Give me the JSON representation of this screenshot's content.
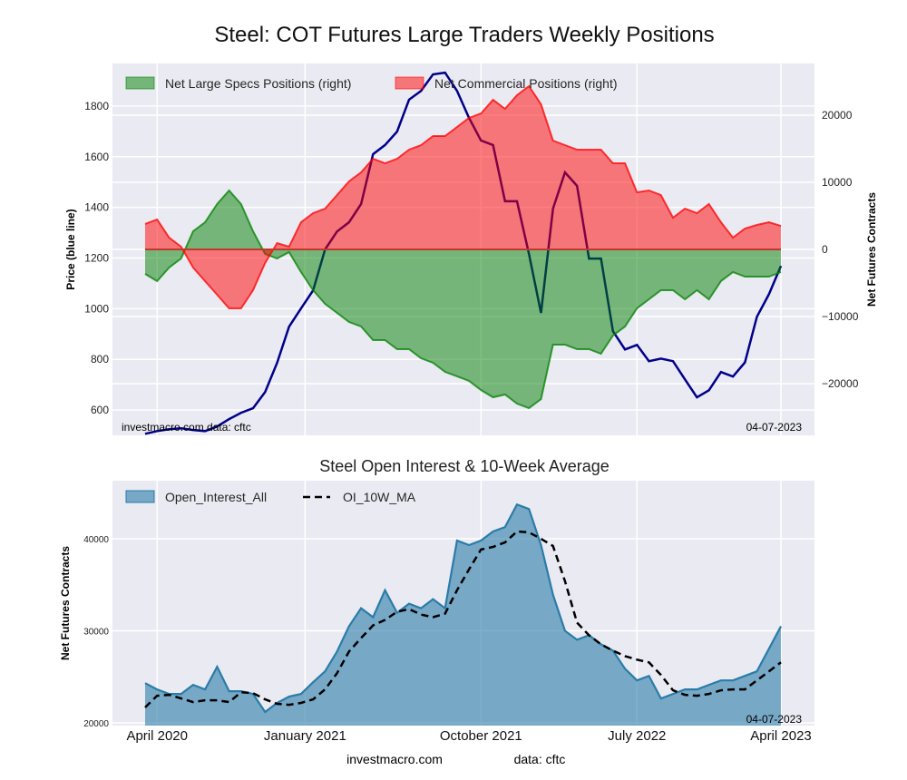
{
  "title": "Steel: COT Futures Large Traders Weekly Positions",
  "colors": {
    "bg": "#eaeaf2",
    "grid": "#ffffff",
    "price": "#00008b",
    "specs": "#008000",
    "commercial": "#ff0000",
    "oi_fill": "#2a7ca8",
    "ma": "#000000"
  },
  "chart_data": [
    {
      "type": "area",
      "title": "Steel: COT Futures Large Traders Weekly Positions",
      "xlabel": "",
      "ylabel_left": "Price (blue line)",
      "ylabel_right": "Net Futures Contracts",
      "x_unit": "week index (every 3 weeks)",
      "x": [
        0,
        3,
        6,
        9,
        12,
        15,
        18,
        21,
        24,
        27,
        30,
        33,
        36,
        39,
        42,
        45,
        48,
        51,
        54,
        57,
        60,
        63,
        66,
        69,
        72,
        75,
        78,
        81,
        84,
        87,
        90,
        93,
        96,
        99,
        102,
        105,
        108,
        111,
        114,
        117,
        120,
        123,
        126,
        129,
        132,
        135,
        138,
        141,
        144,
        147,
        150,
        153,
        156,
        159
      ],
      "ylim_left": [
        500,
        1968
      ],
      "ylim_right": [
        -27700,
        27700
      ],
      "yticks_left": [
        600,
        800,
        1000,
        1200,
        1400,
        1600,
        1800
      ],
      "yticks_right": [
        -20000,
        -10000,
        0,
        10000,
        20000
      ],
      "yticks_right_labels": [
        "−20000",
        "−10000",
        "0",
        "10000",
        "20000"
      ],
      "legend": [
        "Net Large Specs Positions (right)",
        "Net Commercial Positions (right)"
      ],
      "legend_position": "top-left",
      "annotation_left": "investmacro.com    data: cftc",
      "annotation_right": "04-07-2023",
      "series": [
        {
          "name": "Price",
          "axis": "left",
          "values": [
            506,
            517,
            524,
            528,
            521,
            517,
            535,
            564,
            589,
            607,
            671,
            786,
            929,
            1001,
            1072,
            1234,
            1305,
            1341,
            1413,
            1610,
            1646,
            1699,
            1825,
            1860,
            1925,
            1932,
            1860,
            1753,
            1664,
            1646,
            1424,
            1424,
            1216,
            983,
            1395,
            1538,
            1485,
            1198,
            1198,
            911,
            839,
            857,
            793,
            803,
            793,
            721,
            650,
            678,
            750,
            732,
            788,
            968,
            1057,
            1169
          ]
        },
        {
          "name": "Net Large Specs Positions (right)",
          "axis": "right",
          "values": [
            -3650,
            -4730,
            -2700,
            -1350,
            2700,
            4050,
            6760,
            8780,
            6760,
            2700,
            -680,
            -1350,
            -410,
            -3380,
            -6080,
            -8110,
            -9460,
            -10810,
            -11480,
            -13510,
            -13510,
            -14860,
            -14860,
            -16210,
            -16890,
            -18240,
            -18910,
            -19590,
            -20940,
            -22020,
            -21620,
            -22970,
            -23640,
            -22290,
            -14190,
            -14190,
            -14860,
            -14860,
            -15540,
            -12830,
            -11480,
            -8780,
            -7430,
            -6080,
            -6080,
            -7430,
            -6080,
            -7430,
            -4730,
            -3380,
            -4050,
            -4050,
            -4050,
            -3380
          ]
        },
        {
          "name": "Net Commercial Positions (right)",
          "axis": "right",
          "values": [
            3800,
            4460,
            1760,
            400,
            -2700,
            -4730,
            -6760,
            -8780,
            -8780,
            -6080,
            -2030,
            950,
            400,
            4050,
            5400,
            6080,
            8100,
            10130,
            11480,
            13510,
            12830,
            13510,
            14860,
            15540,
            16890,
            16890,
            18240,
            19590,
            20260,
            22290,
            20940,
            22970,
            24320,
            21620,
            16210,
            15540,
            14860,
            14860,
            14860,
            12830,
            12830,
            8510,
            8780,
            8100,
            4730,
            6080,
            5400,
            6760,
            4050,
            1760,
            3110,
            3650,
            4050,
            3500
          ]
        }
      ]
    },
    {
      "type": "area",
      "title": "Steel Open Interest & 10-Week Average",
      "ylabel": "Net Futures Contracts",
      "x": [
        0,
        3,
        6,
        9,
        12,
        15,
        18,
        21,
        24,
        27,
        30,
        33,
        36,
        39,
        42,
        45,
        48,
        51,
        54,
        57,
        60,
        63,
        66,
        69,
        72,
        75,
        78,
        81,
        84,
        87,
        90,
        93,
        96,
        99,
        102,
        105,
        108,
        111,
        114,
        117,
        120,
        123,
        126,
        129,
        132,
        135,
        138,
        141,
        144,
        147,
        150,
        153,
        156,
        159
      ],
      "ylim": [
        19700,
        46300
      ],
      "yticks": [
        20000,
        30000,
        40000
      ],
      "xticks": [
        {
          "x": 3,
          "label": "April 2020"
        },
        {
          "x": 40,
          "label": "January 2021"
        },
        {
          "x": 84,
          "label": "October 2021"
        },
        {
          "x": 123,
          "label": "July 2022"
        },
        {
          "x": 159,
          "label": "April 2023"
        }
      ],
      "legend": [
        "Open_Interest_All",
        "OI_10W_MA"
      ],
      "legend_position": "top-left",
      "annotation_right": "04-07-2023",
      "series": [
        {
          "name": "Open_Interest_All",
          "values": [
            24310,
            23630,
            23140,
            23140,
            24120,
            23630,
            26080,
            23430,
            23430,
            23140,
            21180,
            22160,
            22840,
            23140,
            24410,
            25590,
            27740,
            30490,
            32450,
            31470,
            34410,
            31960,
            32940,
            32450,
            33430,
            32450,
            39800,
            39310,
            39800,
            40780,
            41270,
            43720,
            43230,
            39310,
            33920,
            30000,
            29020,
            29510,
            28530,
            27840,
            25880,
            24610,
            25100,
            22650,
            23140,
            23630,
            23630,
            24120,
            24610,
            24610,
            25100,
            25590,
            28040,
            30490
          ]
        },
        {
          "name": "OI_10W_MA",
          "values": [
            21670,
            22940,
            23040,
            22650,
            22250,
            22450,
            22450,
            22250,
            23330,
            23230,
            22550,
            22060,
            21960,
            22160,
            22550,
            23630,
            25390,
            27740,
            29210,
            30590,
            31180,
            32060,
            32350,
            31760,
            31470,
            31860,
            34410,
            36660,
            38820,
            39110,
            39600,
            40780,
            40680,
            39990,
            39210,
            35390,
            30880,
            29510,
            28530,
            27840,
            27250,
            26860,
            26570,
            25200,
            23530,
            23040,
            22940,
            23140,
            23530,
            23630,
            23630,
            24610,
            25590,
            26570
          ]
        }
      ]
    }
  ],
  "footer": {
    "site": "investmacro.com",
    "data": "data: cftc"
  }
}
